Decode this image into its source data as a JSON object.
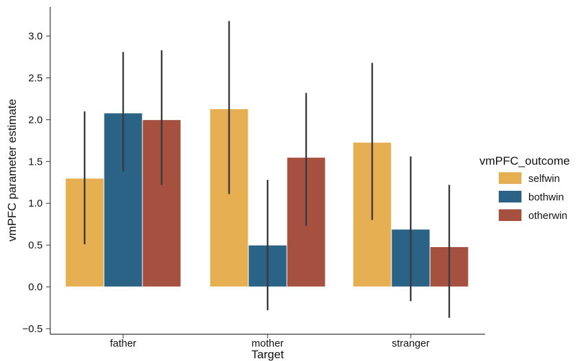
{
  "chart_data": {
    "type": "bar",
    "xlabel": "Target",
    "ylabel": "vmPFC parameter estimate",
    "categories": [
      "father",
      "mother",
      "stranger"
    ],
    "ylim": [
      -0.5,
      3.4
    ],
    "yticks": [
      -0.5,
      0.0,
      0.5,
      1.0,
      1.5,
      2.0,
      2.5,
      3.0
    ],
    "ytick_labels": [
      "−0.5",
      "0.0",
      "0.5",
      "1.0",
      "1.5",
      "2.0",
      "2.5",
      "3.0"
    ],
    "legend": {
      "title": "vmPFC_outcome",
      "placement": "right"
    },
    "grid": false,
    "series": [
      {
        "name": "selfwin",
        "color": "#E6B052",
        "values": [
          1.3,
          2.13,
          1.73
        ],
        "ci_low": [
          0.51,
          1.11,
          0.8
        ],
        "ci_high": [
          2.1,
          3.18,
          2.68
        ]
      },
      {
        "name": "bothwin",
        "color": "#2B6387",
        "values": [
          2.08,
          0.5,
          0.69
        ],
        "ci_low": [
          1.38,
          -0.28,
          -0.17
        ],
        "ci_high": [
          2.81,
          1.28,
          1.56
        ]
      },
      {
        "name": "otherwin",
        "color": "#A65140",
        "values": [
          2.0,
          1.55,
          0.48
        ],
        "ci_low": [
          1.22,
          0.73,
          -0.37
        ],
        "ci_high": [
          2.83,
          2.32,
          1.22
        ]
      }
    ]
  }
}
